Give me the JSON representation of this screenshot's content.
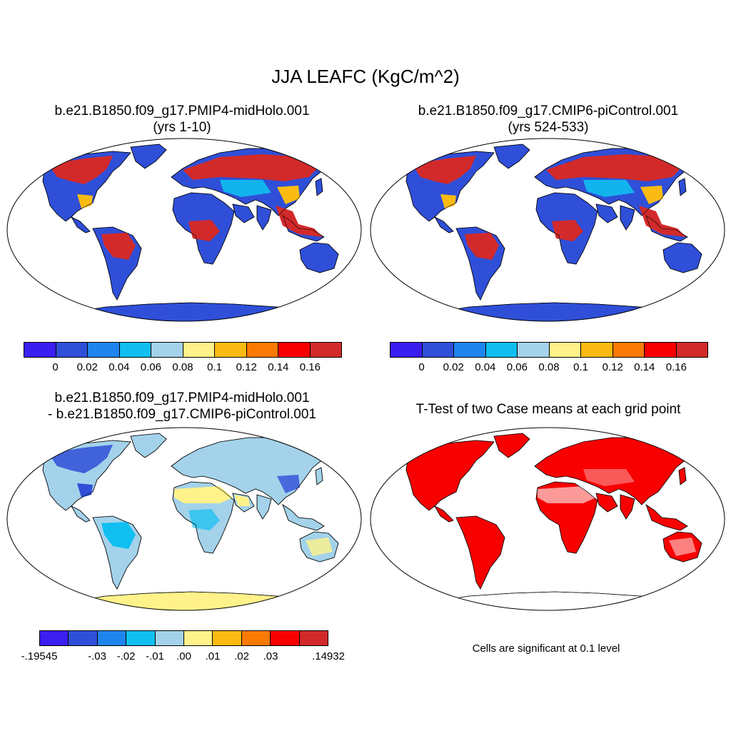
{
  "figure": {
    "title": "JJA LEAFC (KgC/m^2)"
  },
  "colors": {
    "ocean": "#ffffff",
    "outline": "#000000",
    "significant": "#ff0000"
  },
  "panels": [
    {
      "id": "midholo",
      "title_line1": "b.e21.B1850.f09_g17.PMIP4-midHolo.001",
      "title_line2": "(yrs 1-10)",
      "field": "leafc"
    },
    {
      "id": "picontrol",
      "title_line1": "b.e21.B1850.f09_g17.CMIP6-piControl.001",
      "title_line2": "(yrs 524-533)",
      "field": "leafc"
    },
    {
      "id": "difference",
      "title_line1": "b.e21.B1850.f09_g17.PMIP4-midHolo.001",
      "title_line2": "- b.e21.B1850.f09_g17.CMIP6-piControl.001",
      "field": "diff"
    },
    {
      "id": "ttest",
      "title_line1": "T-Test of two Case means at each grid point",
      "title_line2": "",
      "field": "ttest"
    }
  ],
  "colorbars": {
    "leafc": {
      "colors": [
        "#3b1ef0",
        "#2f4fd8",
        "#1f85ee",
        "#10bff0",
        "#a3d2ea",
        "#fff28a",
        "#fcbb12",
        "#fb7a04",
        "#f80000",
        "#d22a2a"
      ],
      "labels": [
        "0",
        "0.02",
        "0.04",
        "0.06",
        "0.08",
        "0.1",
        "0.12",
        "0.14",
        "0.16"
      ]
    },
    "diff": {
      "colors": [
        "#3b1ef0",
        "#2f4fd8",
        "#1f85ee",
        "#10bff0",
        "#a3d2ea",
        "#fff28a",
        "#fcbb12",
        "#fb7a04",
        "#f80000",
        "#d22a2a"
      ],
      "labels": [
        "-.19545",
        "-.03",
        "-.02",
        "-.01",
        ".00",
        ".01",
        ".02",
        ".03",
        ".14932"
      ]
    }
  },
  "ttest_note": "Cells are significant at 0.1 level",
  "map_fills": {
    "leafc": {
      "base": "#2f4fd8",
      "boreal": "#d22a2a",
      "boreal_edge": "#fcbb12",
      "boreal_inner": "#10bff0",
      "tropics": "#d22a2a",
      "tropics_edge": "#fb7a04",
      "antarctica": "#2f4fd8"
    },
    "diff": {
      "base": "#a3d2ea",
      "desert": "#fff28a",
      "boreal": "#2f4fd8",
      "tropics": "#10bff0",
      "antarctica": "#fff28a"
    },
    "ttest": {
      "base": "#f80000",
      "antarctica": "#ffffff"
    }
  }
}
